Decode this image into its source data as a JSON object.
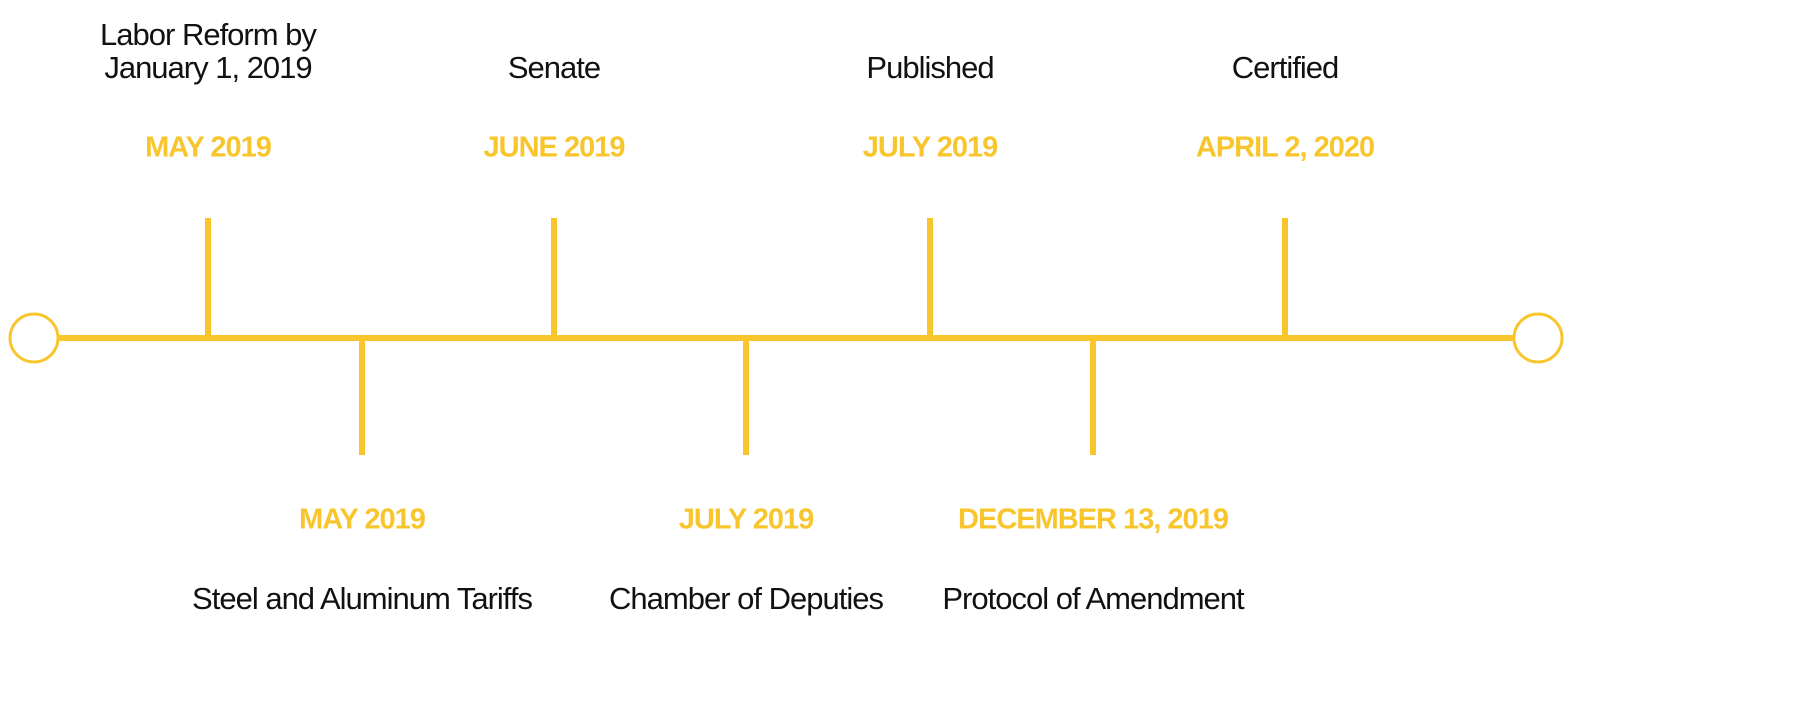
{
  "events": [
    {
      "date": "MAY 2019",
      "label": "Labor Reform by January 1, 2019",
      "position": "above"
    },
    {
      "date": "MAY 2019",
      "label": "Steel and Aluminum Tariffs",
      "position": "below"
    },
    {
      "date": "JUNE 2019",
      "label": "Senate",
      "position": "above"
    },
    {
      "date": "JULY 2019",
      "label": "Chamber of Deputies",
      "position": "below"
    },
    {
      "date": "JULY 2019",
      "label": "Published",
      "position": "above"
    },
    {
      "date": "DECEMBER 13, 2019",
      "label": "Protocol of Amendment",
      "position": "below"
    },
    {
      "date": "APRIL 2, 2020",
      "label": "Certified",
      "position": "above"
    }
  ],
  "color": "#f8c62c"
}
